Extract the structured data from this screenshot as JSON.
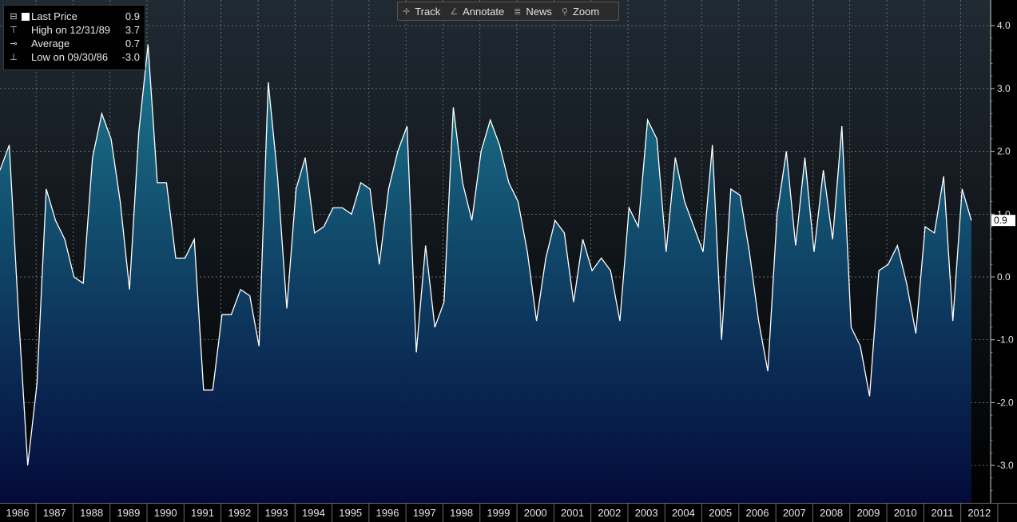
{
  "legend": {
    "last_price_label": "Last Price",
    "last_price_value": "0.9",
    "high_label": "High on 12/31/89",
    "high_value": "3.7",
    "average_label": "Average",
    "average_value": "0.7",
    "low_label": "Low on 09/30/86",
    "low_value": "-3.0"
  },
  "toolbar": {
    "track": "Track",
    "annotate": "Annotate",
    "news": "News",
    "zoom": "Zoom"
  },
  "colors": {
    "background_top": "#202a33",
    "background_bottom": "#000000",
    "fill_top": "#1c7a90",
    "fill_bottom": "#030a3a",
    "line": "#ffffff",
    "grid": "#8a8a8a"
  },
  "chart_data": {
    "type": "area",
    "x_start": "1985-12-31",
    "frequency": "quarterly",
    "values": [
      1.7,
      2.1,
      -0.6,
      -3.0,
      -1.7,
      1.4,
      0.9,
      0.6,
      0.0,
      -0.1,
      1.9,
      2.6,
      2.2,
      1.2,
      -0.2,
      2.3,
      3.7,
      1.5,
      1.5,
      0.3,
      0.3,
      0.6,
      -1.8,
      -1.8,
      -0.6,
      -0.6,
      -0.2,
      -0.3,
      -1.1,
      3.1,
      1.6,
      -0.5,
      1.4,
      1.9,
      0.7,
      0.8,
      1.1,
      1.1,
      1.0,
      1.5,
      1.4,
      0.2,
      1.4,
      2.0,
      2.4,
      -1.2,
      0.5,
      -0.8,
      -0.4,
      2.7,
      1.5,
      0.9,
      2.0,
      2.5,
      2.1,
      1.5,
      1.2,
      0.4,
      -0.7,
      0.3,
      0.9,
      0.7,
      -0.4,
      0.6,
      0.1,
      0.3,
      0.1,
      -0.7,
      1.1,
      0.8,
      2.5,
      2.2,
      0.4,
      1.9,
      1.2,
      0.8,
      0.4,
      2.1,
      -1.0,
      1.4,
      1.3,
      0.4,
      -0.7,
      -1.5,
      1.0,
      2.0,
      0.5,
      1.9,
      0.4,
      1.7,
      0.6,
      2.4,
      -0.8,
      -1.1,
      -1.9,
      0.1,
      0.2,
      0.5,
      -0.1,
      -0.9,
      0.8,
      0.7,
      1.6,
      -0.7,
      1.4,
      0.9
    ],
    "x_labels": [
      "1986",
      "1987",
      "1988",
      "1989",
      "1990",
      "1991",
      "1992",
      "1993",
      "1994",
      "1995",
      "1996",
      "1997",
      "1998",
      "1999",
      "2000",
      "2001",
      "2002",
      "2003",
      "2004",
      "2005",
      "2006",
      "2007",
      "2008",
      "2009",
      "2010",
      "2011",
      "2012"
    ],
    "y_ticks": [
      "4.0",
      "3.0",
      "2.0",
      "1.0",
      "0.0",
      "-1.0",
      "-2.0",
      "-3.0"
    ],
    "y_tick_values": [
      4,
      3,
      2,
      1,
      0,
      -1,
      -2,
      -3
    ],
    "ylim": [
      -3.5,
      4.3
    ],
    "last_value_label": "0.9",
    "grid": true,
    "legend_position": "top-left"
  }
}
